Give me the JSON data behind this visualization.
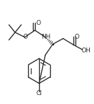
{
  "bg_color": "#ffffff",
  "line_color": "#2a2a2a",
  "line_width": 1.0,
  "font_size": 6.5,
  "figsize": [
    1.37,
    1.51
  ],
  "dpi": 100,
  "xlim": [
    0,
    137
  ],
  "ylim": [
    0,
    151
  ]
}
